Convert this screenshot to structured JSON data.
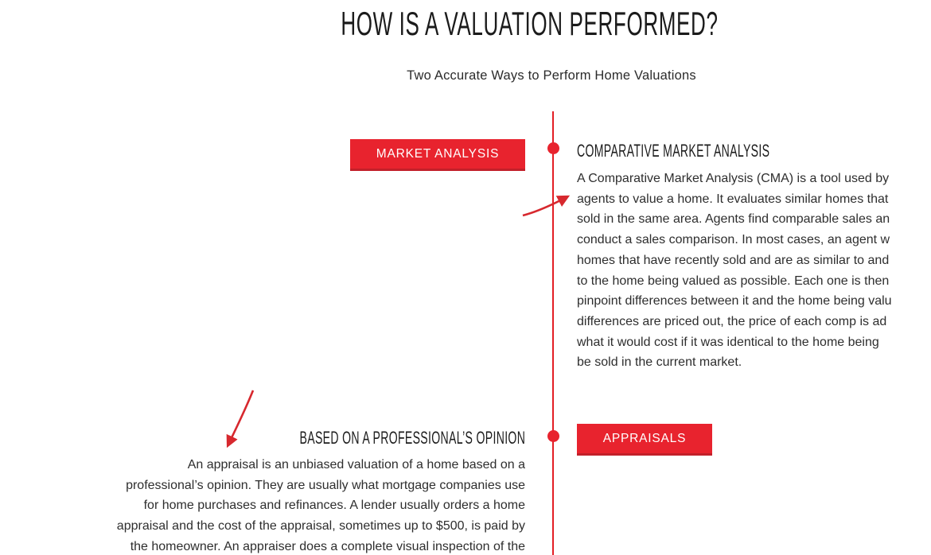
{
  "colors": {
    "accent_red": "#e8232e",
    "accent_red_dark": "#c2202a",
    "line_red": "#e31e25",
    "arrow_red": "#d7282e"
  },
  "header": {
    "title": "HOW IS A VALUATION PERFORMED?",
    "subtitle": "Two Accurate Ways to Perform Home Valuations"
  },
  "sections": [
    {
      "button_label": "MARKET ANALYSIS",
      "heading": "COMPARATIVE MARKET ANALYSIS",
      "paragraph_lines": [
        "A Comparative Market Analysis (CMA) is a tool used by",
        "agents to value a home. It evaluates similar homes that",
        "sold in the same area. Agents find comparable sales an",
        "conduct a sales comparison. In most cases, an agent w",
        "homes that have recently sold and are as similar to and",
        "to the home being valued as possible. Each one is then",
        "pinpoint differences between it and the home being valu",
        "differences are priced out, the price of each comp is ad",
        "what it would cost if it was identical to the home being",
        "be sold in the current market."
      ]
    },
    {
      "button_label": "APPRAISALS",
      "heading": "BASED ON A PROFESSIONAL’S OPINION",
      "paragraph_lines": [
        "An appraisal is an unbiased valuation of a home based on a",
        "professional’s opinion. They are usually what mortgage companies use",
        "for home purchases and refinances. A lender usually orders a home",
        "appraisal and the cost of the appraisal, sometimes up to $500, is paid by",
        "the homeowner. An appraiser does a complete visual inspection of the"
      ]
    }
  ]
}
